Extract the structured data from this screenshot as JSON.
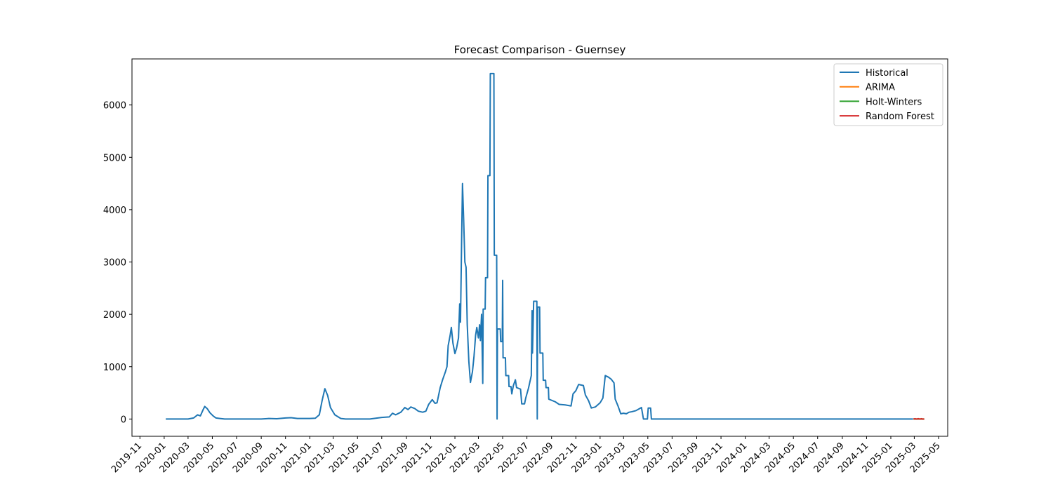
{
  "chart_data": {
    "type": "line",
    "title": "Forecast Comparison - Guernsey",
    "xlabel": "",
    "ylabel": "",
    "xlim": [
      "2019-10-12",
      "2025-05-24"
    ],
    "ylim": [
      -330,
      6880
    ],
    "x_ticks": [
      "2019-11",
      "2020-01",
      "2020-03",
      "2020-05",
      "2020-07",
      "2020-09",
      "2020-11",
      "2021-01",
      "2021-03",
      "2021-05",
      "2021-07",
      "2021-09",
      "2021-11",
      "2022-01",
      "2022-03",
      "2022-05",
      "2022-07",
      "2022-09",
      "2022-11",
      "2023-01",
      "2023-03",
      "2023-05",
      "2023-07",
      "2023-09",
      "2023-11",
      "2024-01",
      "2024-03",
      "2024-05",
      "2024-07",
      "2024-09",
      "2024-11",
      "2025-01",
      "2025-03",
      "2025-05"
    ],
    "y_ticks": [
      0,
      1000,
      2000,
      3000,
      4000,
      5000,
      6000
    ],
    "grid": false,
    "legend": "top-right",
    "series": [
      {
        "name": "Historical",
        "color": "#1f77b4",
        "points": [
          [
            "2020-01-05",
            0
          ],
          [
            "2020-03-01",
            0
          ],
          [
            "2020-03-15",
            20
          ],
          [
            "2020-03-25",
            80
          ],
          [
            "2020-04-01",
            60
          ],
          [
            "2020-04-08",
            180
          ],
          [
            "2020-04-12",
            240
          ],
          [
            "2020-04-18",
            200
          ],
          [
            "2020-04-25",
            120
          ],
          [
            "2020-05-03",
            60
          ],
          [
            "2020-05-10",
            20
          ],
          [
            "2020-05-20",
            10
          ],
          [
            "2020-06-01",
            0
          ],
          [
            "2020-09-01",
            0
          ],
          [
            "2020-09-20",
            10
          ],
          [
            "2020-10-10",
            5
          ],
          [
            "2020-11-01",
            20
          ],
          [
            "2020-11-15",
            25
          ],
          [
            "2020-12-01",
            10
          ],
          [
            "2021-01-01",
            10
          ],
          [
            "2021-01-15",
            15
          ],
          [
            "2021-01-25",
            80
          ],
          [
            "2021-02-01",
            350
          ],
          [
            "2021-02-08",
            580
          ],
          [
            "2021-02-15",
            450
          ],
          [
            "2021-02-22",
            220
          ],
          [
            "2021-03-05",
            80
          ],
          [
            "2021-03-20",
            10
          ],
          [
            "2021-04-01",
            0
          ],
          [
            "2021-06-01",
            0
          ],
          [
            "2021-07-01",
            30
          ],
          [
            "2021-07-20",
            40
          ],
          [
            "2021-07-28",
            110
          ],
          [
            "2021-08-05",
            80
          ],
          [
            "2021-08-18",
            130
          ],
          [
            "2021-08-28",
            220
          ],
          [
            "2021-09-05",
            180
          ],
          [
            "2021-09-12",
            230
          ],
          [
            "2021-09-22",
            200
          ],
          [
            "2021-10-01",
            150
          ],
          [
            "2021-10-12",
            130
          ],
          [
            "2021-10-20",
            150
          ],
          [
            "2021-10-27",
            280
          ],
          [
            "2021-11-05",
            370
          ],
          [
            "2021-11-12",
            300
          ],
          [
            "2021-11-17",
            310
          ],
          [
            "2021-11-25",
            600
          ],
          [
            "2021-12-01",
            750
          ],
          [
            "2021-12-08",
            900
          ],
          [
            "2021-12-12",
            1000
          ],
          [
            "2021-12-15",
            1400
          ],
          [
            "2021-12-20",
            1600
          ],
          [
            "2021-12-23",
            1750
          ],
          [
            "2021-12-27",
            1450
          ],
          [
            "2022-01-01",
            1250
          ],
          [
            "2022-01-05",
            1350
          ],
          [
            "2022-01-10",
            1550
          ],
          [
            "2022-01-13",
            2200
          ],
          [
            "2022-01-15",
            1850
          ],
          [
            "2022-01-18",
            3500
          ],
          [
            "2022-01-20",
            4500
          ],
          [
            "2022-01-23",
            3800
          ],
          [
            "2022-01-26",
            3000
          ],
          [
            "2022-01-29",
            2900
          ],
          [
            "2022-02-01",
            1800
          ],
          [
            "2022-02-05",
            1100
          ],
          [
            "2022-02-09",
            700
          ],
          [
            "2022-02-14",
            900
          ],
          [
            "2022-02-18",
            1200
          ],
          [
            "2022-02-22",
            1600
          ],
          [
            "2022-02-25",
            1750
          ],
          [
            "2022-03-01",
            1550
          ],
          [
            "2022-03-04",
            1800
          ],
          [
            "2022-03-06",
            1500
          ],
          [
            "2022-03-09",
            2000
          ],
          [
            "2022-03-12",
            680
          ],
          [
            "2022-03-13",
            2100
          ],
          [
            "2022-03-18",
            2100
          ],
          [
            "2022-03-19",
            2700
          ],
          [
            "2022-03-24",
            2700
          ],
          [
            "2022-03-25",
            4650
          ],
          [
            "2022-03-30",
            4650
          ],
          [
            "2022-03-31",
            6600
          ],
          [
            "2022-04-09",
            6600
          ],
          [
            "2022-04-10",
            3130
          ],
          [
            "2022-04-16",
            3130
          ],
          [
            "2022-04-17",
            0
          ],
          [
            "2022-04-18",
            1720
          ],
          [
            "2022-04-25",
            1720
          ],
          [
            "2022-04-26",
            1480
          ],
          [
            "2022-04-30",
            1480
          ],
          [
            "2022-05-01",
            2650
          ],
          [
            "2022-05-02",
            1170
          ],
          [
            "2022-05-08",
            1170
          ],
          [
            "2022-05-09",
            830
          ],
          [
            "2022-05-16",
            830
          ],
          [
            "2022-05-17",
            620
          ],
          [
            "2022-05-22",
            620
          ],
          [
            "2022-05-24",
            480
          ],
          [
            "2022-05-28",
            640
          ],
          [
            "2022-06-02",
            750
          ],
          [
            "2022-06-05",
            600
          ],
          [
            "2022-06-15",
            570
          ],
          [
            "2022-06-18",
            290
          ],
          [
            "2022-06-25",
            290
          ],
          [
            "2022-06-28",
            400
          ],
          [
            "2022-07-05",
            590
          ],
          [
            "2022-07-12",
            830
          ],
          [
            "2022-07-14",
            2070
          ],
          [
            "2022-07-15",
            1260
          ],
          [
            "2022-07-18",
            2250
          ],
          [
            "2022-07-26",
            2250
          ],
          [
            "2022-07-27",
            0
          ],
          [
            "2022-07-28",
            2140
          ],
          [
            "2022-08-02",
            2140
          ],
          [
            "2022-08-03",
            1260
          ],
          [
            "2022-08-10",
            1260
          ],
          [
            "2022-08-11",
            740
          ],
          [
            "2022-08-17",
            740
          ],
          [
            "2022-08-18",
            600
          ],
          [
            "2022-08-24",
            600
          ],
          [
            "2022-08-25",
            380
          ],
          [
            "2022-09-10",
            330
          ],
          [
            "2022-09-20",
            280
          ],
          [
            "2022-10-05",
            270
          ],
          [
            "2022-10-20",
            250
          ],
          [
            "2022-10-25",
            480
          ],
          [
            "2022-11-01",
            540
          ],
          [
            "2022-11-08",
            660
          ],
          [
            "2022-11-20",
            640
          ],
          [
            "2022-11-25",
            460
          ],
          [
            "2022-12-03",
            350
          ],
          [
            "2022-12-10",
            210
          ],
          [
            "2022-12-20",
            230
          ],
          [
            "2023-01-01",
            310
          ],
          [
            "2023-01-08",
            400
          ],
          [
            "2023-01-14",
            830
          ],
          [
            "2023-01-22",
            800
          ],
          [
            "2023-01-29",
            760
          ],
          [
            "2023-02-05",
            690
          ],
          [
            "2023-02-08",
            380
          ],
          [
            "2023-02-15",
            250
          ],
          [
            "2023-02-22",
            100
          ],
          [
            "2023-03-01",
            110
          ],
          [
            "2023-03-08",
            100
          ],
          [
            "2023-03-15",
            130
          ],
          [
            "2023-03-22",
            140
          ],
          [
            "2023-04-01",
            160
          ],
          [
            "2023-04-08",
            190
          ],
          [
            "2023-04-15",
            220
          ],
          [
            "2023-04-20",
            0
          ],
          [
            "2023-04-30",
            0
          ],
          [
            "2023-05-02",
            210
          ],
          [
            "2023-05-08",
            210
          ],
          [
            "2023-05-10",
            0
          ],
          [
            "2025-02-26",
            0
          ]
        ]
      },
      {
        "name": "ARIMA",
        "color": "#ff7f0e",
        "points": [
          [
            "2025-02-27",
            0
          ],
          [
            "2025-03-26",
            0
          ]
        ]
      },
      {
        "name": "Holt-Winters",
        "color": "#2ca02c",
        "points": [
          [
            "2025-02-27",
            0
          ],
          [
            "2025-03-26",
            0
          ]
        ]
      },
      {
        "name": "Random Forest",
        "color": "#d62728",
        "points": [
          [
            "2025-02-27",
            0
          ],
          [
            "2025-03-03",
            6
          ],
          [
            "2025-03-07",
            -3
          ],
          [
            "2025-03-11",
            7
          ],
          [
            "2025-03-15",
            -2
          ],
          [
            "2025-03-19",
            6
          ],
          [
            "2025-03-23",
            -4
          ],
          [
            "2025-03-26",
            3
          ]
        ]
      }
    ]
  }
}
